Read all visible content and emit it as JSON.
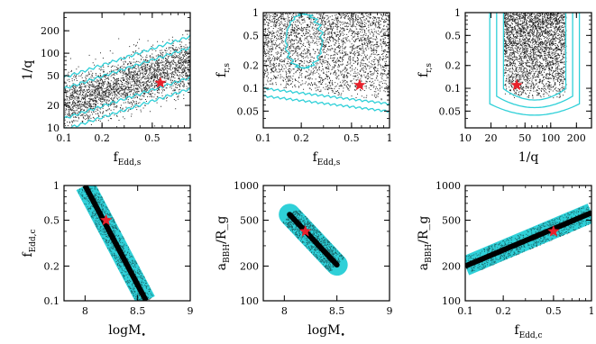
{
  "figure": {
    "marker_color": "#e8212b",
    "contour_color": "#2fd0d8",
    "point_color": "#000000"
  },
  "chart_data": [
    {
      "type": "scatter",
      "xlabel": "f_{Edd,s}",
      "ylabel": "1/q",
      "xscale": "log",
      "yscale": "log",
      "xlim": [
        0.1,
        1
      ],
      "ylim": [
        10,
        350
      ],
      "xticks": [
        0.1,
        0.2,
        0.5,
        1
      ],
      "xtick_labels": [
        "0.1",
        "0.2",
        "0.5",
        "1"
      ],
      "yticks": [
        10,
        20,
        50,
        100,
        200
      ],
      "ytick_labels": [
        "10",
        "20",
        "50",
        "100",
        "200"
      ],
      "star": {
        "x": 0.58,
        "y": 40
      },
      "band": {
        "slope": 0.55,
        "center_at_x1": 75,
        "inner_halfwidth_dex": 0.2,
        "outer_halfwidth_dex": 0.35
      }
    },
    {
      "type": "scatter",
      "xlabel": "f_{Edd,s}",
      "ylabel": "f_{r,s}",
      "xscale": "log",
      "yscale": "log",
      "xlim": [
        0.1,
        1
      ],
      "ylim": [
        0.03,
        1
      ],
      "xticks": [
        0.1,
        0.2,
        0.5,
        1
      ],
      "xtick_labels": [
        "0.1",
        "0.2",
        "0.5",
        "1"
      ],
      "yticks": [
        0.05,
        0.1,
        0.2,
        0.5,
        1
      ],
      "ytick_labels": [
        "0.05",
        "0.1",
        "0.2",
        "0.5",
        "1"
      ],
      "star": {
        "x": 0.58,
        "y": 0.11
      },
      "floor": {
        "y_at_x01": 0.12,
        "y_at_x1": 0.075
      }
    },
    {
      "type": "scatter",
      "xlabel": "1/q",
      "ylabel": "f_{r,s}",
      "xscale": "log",
      "yscale": "log",
      "xlim": [
        10,
        300
      ],
      "ylim": [
        0.03,
        1
      ],
      "xticks": [
        10,
        20,
        50,
        100,
        200
      ],
      "xtick_labels": [
        "10",
        "20",
        "50",
        "100",
        "200"
      ],
      "yticks": [
        0.05,
        0.1,
        0.2,
        0.5,
        1
      ],
      "ytick_labels": [
        "0.05",
        "0.1",
        "0.2",
        "0.5",
        "1"
      ],
      "star": {
        "x": 40,
        "y": 0.11
      },
      "u_shape": {
        "x_min": 28,
        "x_max": 150,
        "y_floor": 0.07
      }
    },
    {
      "type": "scatter",
      "xlabel": "logM_{•}",
      "ylabel": "f_{Edd,c}",
      "xscale": "linear",
      "yscale": "log",
      "xlim": [
        7.8,
        9
      ],
      "ylim": [
        0.1,
        1
      ],
      "xticks": [
        8,
        8.5,
        9
      ],
      "xtick_labels": [
        "8",
        "8.5",
        "9"
      ],
      "yticks": [
        0.1,
        0.2,
        0.5,
        1
      ],
      "ytick_labels": [
        "0.1",
        "0.2",
        "0.5",
        "1"
      ],
      "star": {
        "x": 8.2,
        "y": 0.5
      },
      "line": {
        "x0": 8.0,
        "y0": 1.0,
        "x1": 8.58,
        "y1": 0.1
      }
    },
    {
      "type": "scatter",
      "xlabel": "logM_{•}",
      "ylabel": "a_{BBH}/R_g",
      "xscale": "linear",
      "yscale": "log",
      "xlim": [
        7.8,
        9
      ],
      "ylim": [
        100,
        1000
      ],
      "xticks": [
        8,
        8.5,
        9
      ],
      "xtick_labels": [
        "8",
        "8.5",
        "9"
      ],
      "yticks": [
        100,
        200,
        500,
        1000
      ],
      "ytick_labels": [
        "100",
        "200",
        "500",
        "1000"
      ],
      "star": {
        "x": 8.2,
        "y": 400
      },
      "line": {
        "x0": 8.05,
        "y0": 560,
        "x1": 8.5,
        "y1": 205
      }
    },
    {
      "type": "scatter",
      "xlabel": "f_{Edd,c}",
      "ylabel": "a_{BBH}/R_g",
      "xscale": "log",
      "yscale": "log",
      "xlim": [
        0.1,
        1
      ],
      "ylim": [
        100,
        1000
      ],
      "xticks": [
        0.1,
        0.2,
        0.5,
        1
      ],
      "xtick_labels": [
        "0.1",
        "0.2",
        "0.5",
        "1"
      ],
      "yticks": [
        100,
        200,
        500,
        1000
      ],
      "ytick_labels": [
        "100",
        "200",
        "500",
        "1000"
      ],
      "star": {
        "x": 0.5,
        "y": 400
      },
      "line": {
        "x0": 0.1,
        "y0": 200,
        "x1": 1.0,
        "y1": 580
      }
    }
  ]
}
